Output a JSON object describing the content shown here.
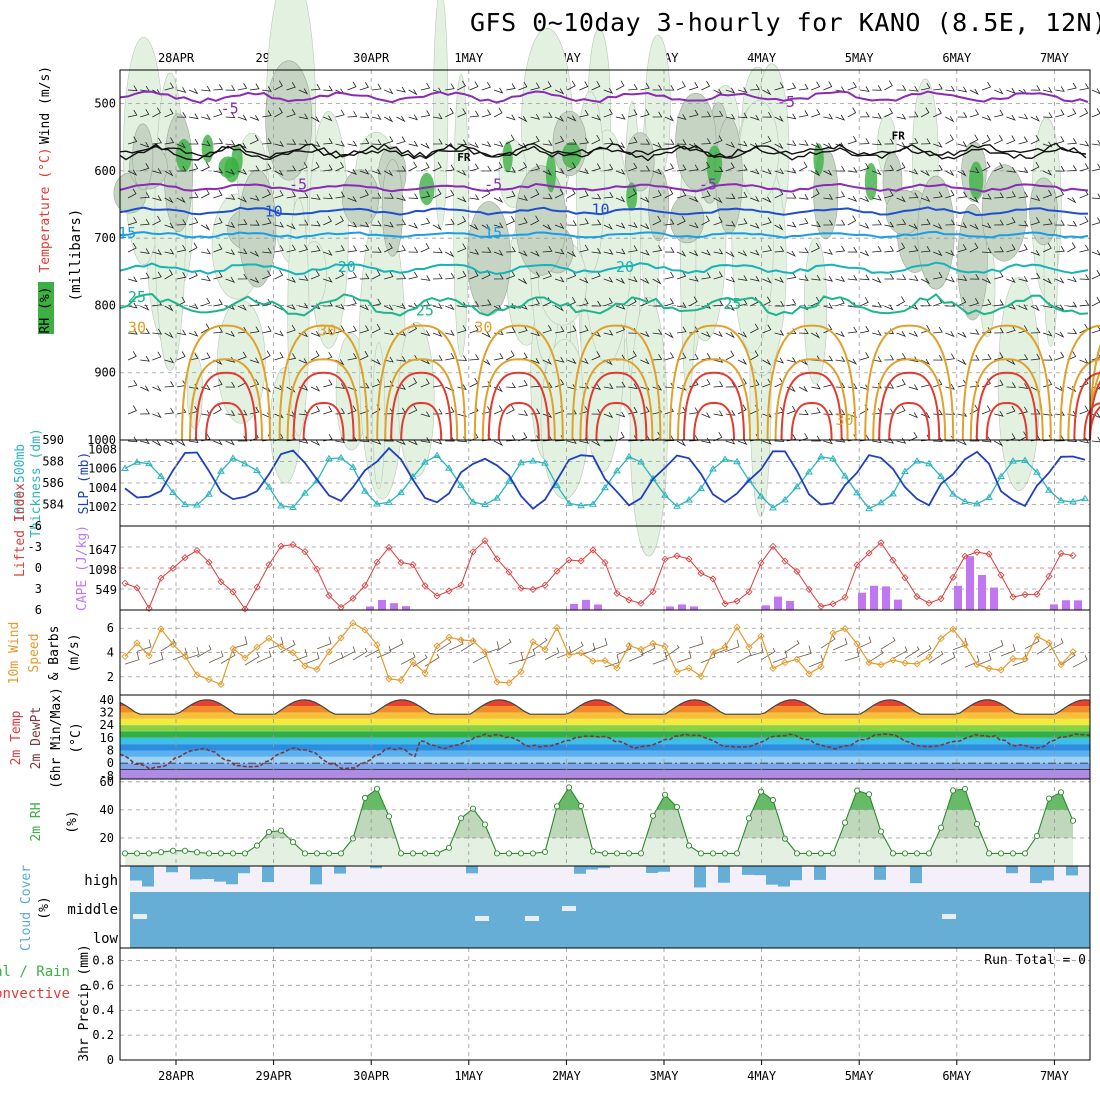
{
  "title": "GFS 0~10day 3-hourly for KANO (8.5E, 12N)",
  "dates": [
    "28APR",
    "29APR",
    "30APR",
    "1MAY",
    "2MAY",
    "3MAY",
    "4MAY",
    "5MAY",
    "6MAY",
    "7MAY"
  ],
  "colors": {
    "rh_green": "#3cb043",
    "rh_light": "#e3f1e1",
    "temp_purple": "#8a2ab5",
    "temp_blue": "#1f4fd0",
    "temp_lightblue": "#1a9ee6",
    "temp_cyan": "#16b3b8",
    "temp_teal": "#1fb58c",
    "temp_orange": "#e0a12a",
    "temp_red": "#e23a2e",
    "slp_blue": "#1f3fbf",
    "thickness_cyan": "#2bb5bf",
    "cape_purple": "#c277f2",
    "li_red": "#dd3b3b",
    "wind_orange": "#e59a2b",
    "cloud_blue": "#67aed7",
    "cloud_bg": "#f4f0fa"
  },
  "panels": {
    "upper": {
      "label_rh": "RH (%)",
      "label_temp": "Temperature (°C)",
      "label_wind": "Wind (m/s)",
      "label_mb": "(millibars)",
      "pressure_ticks": [
        "500",
        "600",
        "700",
        "800",
        "900",
        "1000"
      ],
      "contour_labels": [
        {
          "t": "-5",
          "c": "temp_purple",
          "d": 0.55,
          "p": 515
        },
        {
          "t": "-5",
          "c": "temp_purple",
          "d": 6.25,
          "p": 505
        },
        {
          "t": "-5",
          "c": "temp_purple",
          "d": 1.25,
          "p": 628
        },
        {
          "t": "-5",
          "c": "temp_purple",
          "d": 3.25,
          "p": 628
        },
        {
          "t": "-5",
          "c": "temp_purple",
          "d": 5.45,
          "p": 628
        },
        {
          "t": "10",
          "c": "temp_blue",
          "d": 1.0,
          "p": 668
        },
        {
          "t": "10",
          "c": "temp_blue",
          "d": 4.35,
          "p": 665
        },
        {
          "t": "15",
          "c": "temp_lightblue",
          "d": -0.5,
          "p": 700
        },
        {
          "t": "15",
          "c": "temp_lightblue",
          "d": 3.25,
          "p": 700
        },
        {
          "t": "20",
          "c": "temp_cyan",
          "d": 1.75,
          "p": 750
        },
        {
          "t": "20",
          "c": "temp_cyan",
          "d": 4.6,
          "p": 750
        },
        {
          "t": "25",
          "c": "temp_teal",
          "d": -0.4,
          "p": 795
        },
        {
          "t": "25",
          "c": "temp_teal",
          "d": 2.55,
          "p": 815
        },
        {
          "t": "25",
          "c": "temp_teal",
          "d": 5.7,
          "p": 805
        },
        {
          "t": "30",
          "c": "temp_orange",
          "d": -0.4,
          "p": 840
        },
        {
          "t": "30",
          "c": "temp_orange",
          "d": 1.55,
          "p": 845
        },
        {
          "t": "30",
          "c": "temp_orange",
          "d": 3.15,
          "p": 840
        },
        {
          "t": "30",
          "c": "temp_orange",
          "d": 6.85,
          "p": 978
        },
        {
          "t": "FR",
          "c": "black",
          "d": 2.95,
          "p": 585
        },
        {
          "t": "FR",
          "c": "black",
          "d": 7.4,
          "p": 553
        }
      ]
    },
    "thickness": {
      "label_thk": "1000-500mb",
      "label_thk2": "Thickness (dm)",
      "label_slp": "SLP (mb)",
      "thk_ticks": [
        "590",
        "588",
        "586",
        "584"
      ],
      "slp_ticks": [
        "1008",
        "1006",
        "1004",
        "1002"
      ]
    },
    "cape": {
      "label_li": "Lifted Index",
      "label_cape": "CAPE (J/kg)",
      "li_ticks": [
        "-6",
        "-3",
        "0",
        "3",
        "6"
      ],
      "cape_ticks": [
        "1647",
        "1098",
        "549"
      ]
    },
    "wind10": {
      "label1": "10m Wind",
      "label2": "Speed",
      "label3": "& Barbs",
      "label4": "(m/s)",
      "ticks": [
        "6",
        "4",
        "2"
      ]
    },
    "temp2m": {
      "label1": "2m Temp",
      "label2": "2m DewPt",
      "label3": "(6hr Min/Max)",
      "label4": "(°C)",
      "ticks": [
        "40",
        "32",
        "24",
        "16",
        "8",
        "0",
        "-8"
      ]
    },
    "rh2m": {
      "label1": "2m RH",
      "label2": "(%)",
      "ticks": [
        "60",
        "40",
        "20"
      ]
    },
    "cloud": {
      "label1": "Cloud Cover",
      "label2": "(%)",
      "levels": [
        "high",
        "middle",
        "low"
      ]
    },
    "precip": {
      "label1": "Total / Rain",
      "label2": "Convective",
      "label3": "3hr Precip (mm)",
      "run_total": "Run Total = 0",
      "ticks": [
        "0.8",
        "0.6",
        "0.4",
        "0.2",
        "0"
      ]
    }
  },
  "chart_data": [
    {
      "type": "line",
      "name": "slp_thickness",
      "x": [
        "28APR",
        "29APR",
        "30APR",
        "1MAY",
        "2MAY",
        "3MAY",
        "4MAY",
        "5MAY",
        "6MAY",
        "7MAY"
      ],
      "series": [
        {
          "name": "SLP (mb)",
          "values": [
            1004.5,
            1007.5,
            1004,
            1007.5,
            1002,
            1007.8,
            1002.8,
            1007,
            1003.5,
            1007
          ]
        },
        {
          "name": "1000-500mb Thickness (dm)",
          "values": [
            585.5,
            583.5,
            586.5,
            583.5,
            588,
            584,
            587.5,
            585,
            588.5,
            585
          ]
        }
      ]
    },
    {
      "type": "bar",
      "name": "cape",
      "x": [
        "28APR",
        "29APR",
        "30APR",
        "1MAY",
        "2MAY",
        "3MAY",
        "4MAY",
        "5MAY",
        "6MAY",
        "7MAY"
      ],
      "values": [
        0,
        0,
        300,
        0,
        220,
        150,
        300,
        900,
        1300,
        400
      ],
      "ylabel": "CAPE (J/kg)"
    },
    {
      "type": "area",
      "name": "rh2m",
      "x": [
        "28APR",
        "29APR",
        "30APR",
        "1MAY",
        "2MAY",
        "3MAY",
        "4MAY",
        "5MAY",
        "6MAY",
        "7MAY"
      ],
      "values": [
        10,
        25,
        55,
        40,
        55,
        50,
        53,
        55,
        57,
        53
      ],
      "ylabel": "(%)"
    },
    {
      "type": "line",
      "name": "precip",
      "x": [
        "28APR",
        "29APR",
        "30APR",
        "1MAY",
        "2MAY",
        "3MAY",
        "4MAY",
        "5MAY",
        "6MAY",
        "7MAY"
      ],
      "values": [
        0,
        0,
        0,
        0,
        0,
        0,
        0,
        0,
        0,
        0
      ],
      "ylim": [
        0,
        0.9
      ]
    }
  ]
}
